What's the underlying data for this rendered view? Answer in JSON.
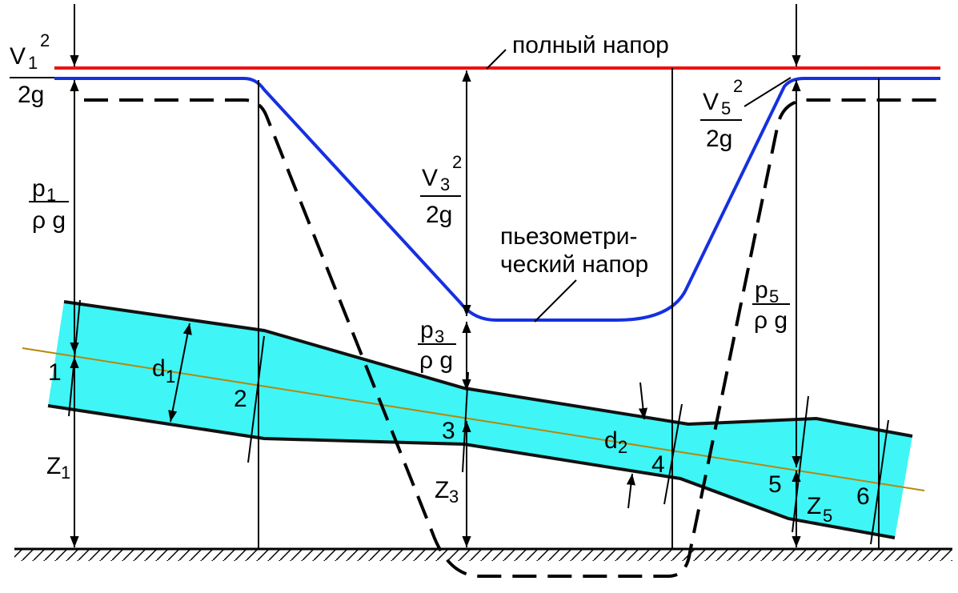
{
  "labels": {
    "total_head": "полный  напор",
    "piezometric_head": [
      "пьезометри-",
      "ческий напор"
    ]
  },
  "velocity_heads": [
    {
      "var": "V",
      "sub": "1",
      "sup": "2",
      "den": "2g"
    },
    {
      "var": "V",
      "sub": "3",
      "sup": "2",
      "den": "2g"
    },
    {
      "var": "V",
      "sub": "5",
      "sup": "2",
      "den": "2g"
    }
  ],
  "pressure_heads": [
    {
      "var": "p",
      "sub": "1",
      "den": "ρ g"
    },
    {
      "var": "p",
      "sub": "3",
      "den": "ρ g"
    },
    {
      "var": "p",
      "sub": "5",
      "den": "ρ g"
    }
  ],
  "elevations": [
    {
      "var": "Z",
      "sub": "1"
    },
    {
      "var": "Z",
      "sub": "3"
    },
    {
      "var": "Z",
      "sub": "5"
    }
  ],
  "diameters": [
    {
      "var": "d",
      "sub": "1"
    },
    {
      "var": "d",
      "sub": "2"
    }
  ],
  "sections": [
    "1",
    "2",
    "3",
    "4",
    "5",
    "6"
  ]
}
